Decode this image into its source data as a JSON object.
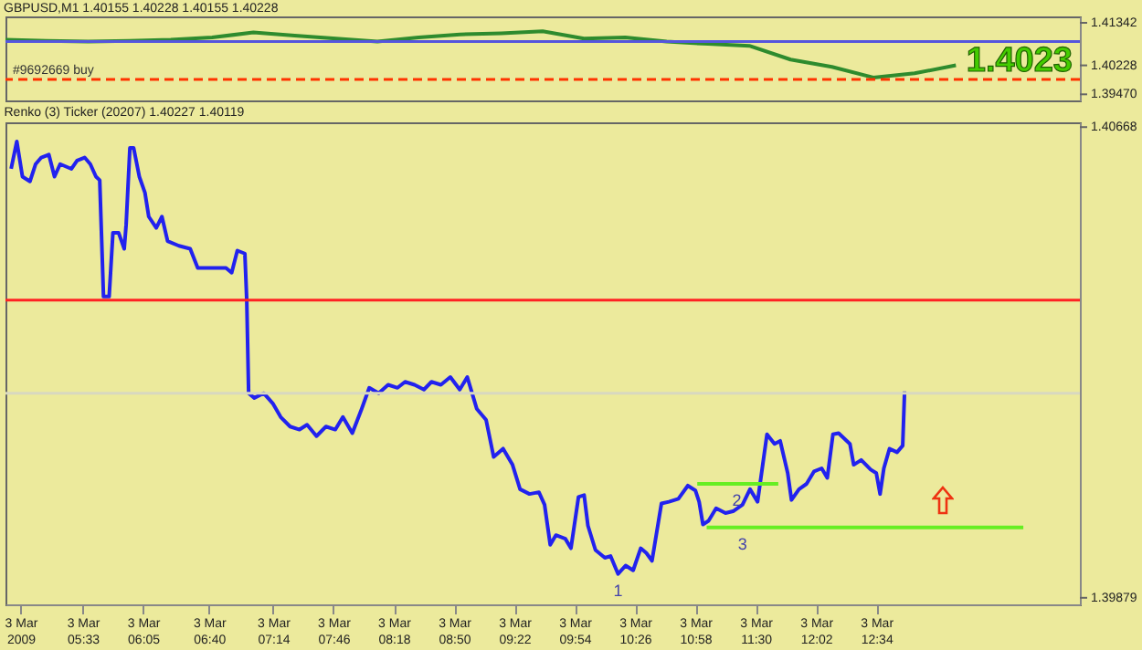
{
  "chart_data": [
    {
      "type": "line",
      "title": "GBPUSD,M1  1.40155 1.40228 1.40155 1.40228",
      "categories": [
        null,
        null,
        null,
        null,
        null,
        null,
        null,
        null,
        null,
        null,
        null,
        null,
        null,
        null,
        null,
        null,
        null,
        null,
        null,
        null,
        null,
        null,
        null,
        null,
        null,
        null,
        null
      ],
      "ylim": [
        1.3931,
        1.4151
      ],
      "yticks": [
        1.41342,
        1.40228,
        {
          "value": 1.3947,
          "label": "1.39470"
        }
      ],
      "tick_labels": "y",
      "marker": "none",
      "series": [
        {
          "color": "#2e8b2e",
          "values": [
            1.409,
            1.4087,
            1.4085,
            1.4087,
            1.409,
            1.4096,
            1.4109,
            1.4101,
            1.4093,
            1.4085,
            1.4096,
            1.4104,
            1.4107,
            1.4112,
            1.4093,
            1.4096,
            1.4085,
            1.4079,
            1.4074,
            1.4038,
            1.4019,
            1.3991,
            1.4002,
            1.4023,
            null,
            null,
            null
          ]
        }
      ],
      "ref_lines": [
        {
          "axis": "y",
          "value": 1.4085,
          "color": "#5555dd"
        },
        {
          "axis": "y",
          "value": 1.3986,
          "color": "#ff3300",
          "line_style": "dashed",
          "label": "#9692669 buy"
        }
      ],
      "annotations": [
        "1.4023"
      ]
    },
    {
      "type": "line",
      "title": "Renko (3) Ticker (20207) 1.40227 1.40119",
      "xlim": [
        "2009-03-03T04:52",
        "2009-03-03T14:22"
      ],
      "ylim": [
        1.39868,
        1.40676
      ],
      "yticks": [
        1.40668,
        1.39879
      ],
      "marker": "none",
      "xticks": [
        {
          "value": "2009-03-03T05:00",
          "label": "3 Mar 2009"
        },
        {
          "value": "2009-03-03T05:33",
          "label": "3 Mar 05:33"
        },
        {
          "value": "2009-03-03T06:05",
          "label": "3 Mar 06:05"
        },
        {
          "value": "2009-03-03T06:40",
          "label": "3 Mar 06:40"
        },
        {
          "value": "2009-03-03T07:14",
          "label": "3 Mar 07:14"
        },
        {
          "value": "2009-03-03T07:46",
          "label": "3 Mar 07:46"
        },
        {
          "value": "2009-03-03T08:18",
          "label": "3 Mar 08:18"
        },
        {
          "value": "2009-03-03T08:50",
          "label": "3 Mar 08:50"
        },
        {
          "value": "2009-03-03T09:22",
          "label": "3 Mar 09:22"
        },
        {
          "value": "2009-03-03T09:54",
          "label": "3 Mar 09:54"
        },
        {
          "value": "2009-03-03T10:26",
          "label": "3 Mar 10:26"
        },
        {
          "value": "2009-03-03T10:58",
          "label": "3 Mar 10:58"
        },
        {
          "value": "2009-03-03T11:30",
          "label": "3 Mar 11:30"
        },
        {
          "value": "2009-03-03T12:02",
          "label": "3 Mar 12:02"
        },
        {
          "value": "2009-03-03T12:34",
          "label": "3 Mar 12:34"
        }
      ],
      "series": [
        {
          "color": "#2222ee",
          "x": [
            "2009-03-03T04:55",
            "2009-03-03T04:58",
            "2009-03-03T05:01",
            "2009-03-03T05:05",
            "2009-03-03T05:08",
            "2009-03-03T05:11",
            "2009-03-03T05:15",
            "2009-03-03T05:18",
            "2009-03-03T05:21",
            "2009-03-03T05:27",
            "2009-03-03T05:30",
            "2009-03-03T05:34",
            "2009-03-03T05:37",
            "2009-03-03T05:40",
            "2009-03-03T05:42",
            "2009-03-03T05:44",
            "2009-03-03T05:47",
            "2009-03-03T05:49",
            "2009-03-03T05:52",
            "2009-03-03T05:55",
            "2009-03-03T05:56",
            "2009-03-03T05:58",
            "2009-03-03T06:00",
            "2009-03-03T06:03",
            "2009-03-03T06:06",
            "2009-03-03T06:08",
            "2009-03-03T06:12",
            "2009-03-03T06:15",
            "2009-03-03T06:18",
            "2009-03-03T06:24",
            "2009-03-03T06:30",
            "2009-03-03T06:34",
            "2009-03-03T06:42",
            "2009-03-03T06:49",
            "2009-03-03T06:52",
            "2009-03-03T06:55",
            "2009-03-03T06:59",
            "2009-03-03T07:00",
            "2009-03-03T07:01",
            "2009-03-03T07:04",
            "2009-03-03T07:09",
            "2009-03-03T07:14",
            "2009-03-03T07:18",
            "2009-03-03T07:23",
            "2009-03-03T07:28",
            "2009-03-03T07:32",
            "2009-03-03T07:37",
            "2009-03-03T07:42",
            "2009-03-03T07:47",
            "2009-03-03T07:51",
            "2009-03-03T07:56",
            "2009-03-03T08:01",
            "2009-03-03T08:05",
            "2009-03-03T08:10",
            "2009-03-03T08:15",
            "2009-03-03T08:20",
            "2009-03-03T08:24",
            "2009-03-03T08:29",
            "2009-03-03T08:34",
            "2009-03-03T08:38",
            "2009-03-03T08:43",
            "2009-03-03T08:48",
            "2009-03-03T08:53",
            "2009-03-03T08:57",
            "2009-03-03T09:02",
            "2009-03-03T09:07",
            "2009-03-03T09:11",
            "2009-03-03T09:16",
            "2009-03-03T09:21",
            "2009-03-03T09:25",
            "2009-03-03T09:30",
            "2009-03-03T09:35",
            "2009-03-03T09:38",
            "2009-03-03T09:41",
            "2009-03-03T09:44",
            "2009-03-03T09:49",
            "2009-03-03T09:52",
            "2009-03-03T09:56",
            "2009-03-03T09:59",
            "2009-03-03T10:01",
            "2009-03-03T10:05",
            "2009-03-03T10:10",
            "2009-03-03T10:13",
            "2009-03-03T10:17",
            "2009-03-03T10:21",
            "2009-03-03T10:25",
            "2009-03-03T10:29",
            "2009-03-03T10:32",
            "2009-03-03T10:35",
            "2009-03-03T10:40",
            "2009-03-03T10:44",
            "2009-03-03T10:49",
            "2009-03-03T10:54",
            "2009-03-03T10:58",
            "2009-03-03T11:00",
            "2009-03-03T11:02",
            "2009-03-03T11:05",
            "2009-03-03T11:09",
            "2009-03-03T11:14",
            "2009-03-03T11:18",
            "2009-03-03T11:23",
            "2009-03-03T11:27",
            "2009-03-03T11:31",
            "2009-03-03T11:36",
            "2009-03-03T11:40",
            "2009-03-03T11:43",
            "2009-03-03T11:47",
            "2009-03-03T11:49",
            "2009-03-03T11:53",
            "2009-03-03T11:57",
            "2009-03-03T12:01",
            "2009-03-03T12:05",
            "2009-03-03T12:08",
            "2009-03-03T12:11",
            "2009-03-03T12:14",
            "2009-03-03T12:20",
            "2009-03-03T12:22",
            "2009-03-03T12:26",
            "2009-03-03T12:31",
            "2009-03-03T12:34",
            "2009-03-03T12:36",
            "2009-03-03T12:38",
            "2009-03-03T12:41",
            "2009-03-03T12:45",
            "2009-03-03T12:48",
            "2009-03-03T12:49"
          ],
          "values": [
            1.40598,
            1.40644,
            1.40585,
            1.40577,
            1.40606,
            1.40617,
            1.40622,
            1.40585,
            1.40606,
            1.40598,
            1.40612,
            1.40617,
            1.40606,
            1.40585,
            1.40579,
            1.40384,
            1.40384,
            1.40491,
            1.40491,
            1.40464,
            1.40504,
            1.40633,
            1.40633,
            1.40585,
            1.40558,
            1.40518,
            1.40499,
            1.40518,
            1.40477,
            1.40469,
            1.40464,
            1.40432,
            1.40432,
            1.40432,
            1.40424,
            1.40461,
            1.40456,
            1.40378,
            1.40222,
            1.40214,
            1.40222,
            1.40204,
            1.40182,
            1.40166,
            1.40161,
            1.40169,
            1.4015,
            1.40166,
            1.40161,
            1.40182,
            1.40155,
            1.40196,
            1.40231,
            1.40222,
            1.40236,
            1.40231,
            1.40241,
            1.40236,
            1.40228,
            1.40241,
            1.40236,
            1.40249,
            1.40228,
            1.40249,
            1.40196,
            1.40177,
            1.40115,
            1.40129,
            1.40102,
            1.40061,
            1.40053,
            1.40056,
            1.40035,
            1.39968,
            1.39984,
            1.39978,
            1.39962,
            1.40048,
            1.40051,
            1.4,
            1.39959,
            1.39946,
            1.39949,
            1.39919,
            1.39933,
            1.39925,
            1.39962,
            1.39954,
            1.39941,
            1.40037,
            1.4004,
            1.40045,
            1.40067,
            1.40059,
            1.4004,
            1.40002,
            1.40008,
            1.40029,
            1.40021,
            1.40024,
            1.40035,
            1.40061,
            1.4004,
            1.40153,
            1.40137,
            1.40142,
            1.40088,
            1.40043,
            1.40061,
            1.4007,
            1.40091,
            1.40096,
            1.4008,
            1.40153,
            1.40155,
            1.40137,
            1.40102,
            1.4011,
            1.40094,
            1.40088,
            1.40053,
            1.40096,
            1.40129,
            1.40123,
            1.40134,
            1.40225
          ]
        },
        {
          "color": "#66ee22",
          "x": [
            "2009-03-03T10:59",
            "2009-03-03T11:42"
          ],
          "values": [
            1.4007,
            1.4007
          ]
        },
        {
          "color": "#66ee22",
          "x": [
            "2009-03-03T11:04",
            "2009-03-03T13:52"
          ],
          "values": [
            1.39997,
            1.39997
          ]
        }
      ],
      "ref_lines": [
        {
          "axis": "y",
          "value": 1.40378,
          "color": "#ff2222"
        },
        {
          "axis": "y",
          "value": 1.40222,
          "color": "#d8d8c0"
        }
      ],
      "annotations": [
        {
          "text": "1",
          "x": "2009-03-03T10:17",
          "y": 1.39919
        },
        {
          "text": "2",
          "x": "2009-03-03T11:20",
          "y": 1.4007
        },
        {
          "text": "3",
          "x": "2009-03-03T11:23",
          "y": 1.39997
        }
      ]
    }
  ]
}
